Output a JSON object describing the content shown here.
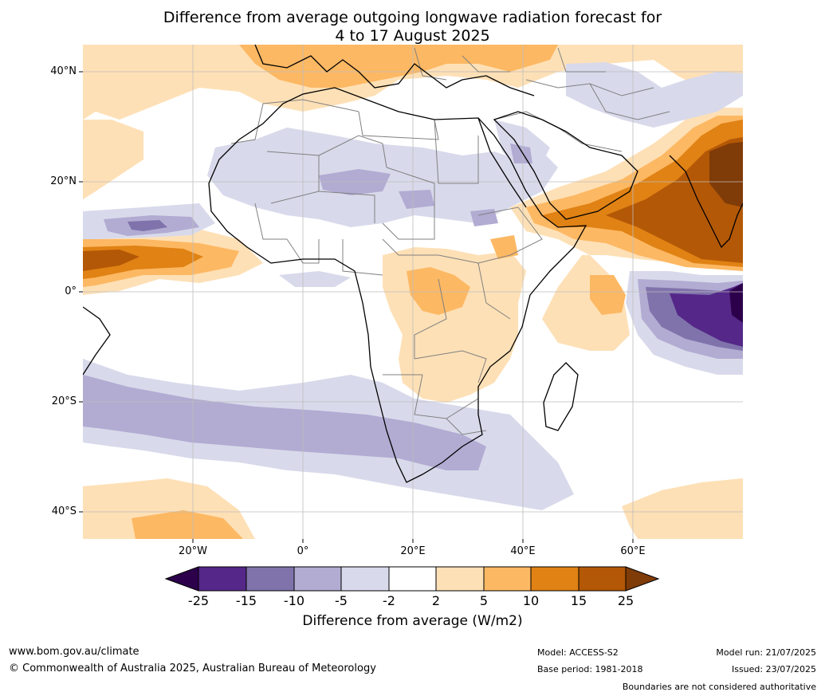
{
  "title_line1": "Difference from average outgoing longwave radiation forecast for",
  "title_line2": "4 to 17 August 2025",
  "lat_labels": [
    "40°N",
    "20°N",
    "0°",
    "20°S",
    "40°S"
  ],
  "lon_labels": [
    "20°W",
    "0°",
    "20°E",
    "40°E",
    "60°E"
  ],
  "colorbar": {
    "ticks": [
      "-25",
      "-15",
      "-10",
      "-5",
      "-2",
      "2",
      "5",
      "10",
      "15",
      "25"
    ],
    "colors": [
      "#2d004b",
      "#542788",
      "#8073ac",
      "#b2abd2",
      "#d8daeb",
      "#ffffff",
      "#fee0b6",
      "#fdb863",
      "#e08214",
      "#b35806",
      "#7f3b08"
    ],
    "label": "Difference from average (W/m2)"
  },
  "footer": {
    "website": "www.bom.gov.au/climate",
    "copyright": "© Commonwealth of Australia 2025, Australian Bureau of Meteorology",
    "model": "Model: ACCESS-S2",
    "base_period": "Base period: 1981-2018",
    "model_run": "Model run: 21/07/2025",
    "issued": "Issued: 23/07/2025",
    "boundaries": "Boundaries are not considered authoritative"
  }
}
